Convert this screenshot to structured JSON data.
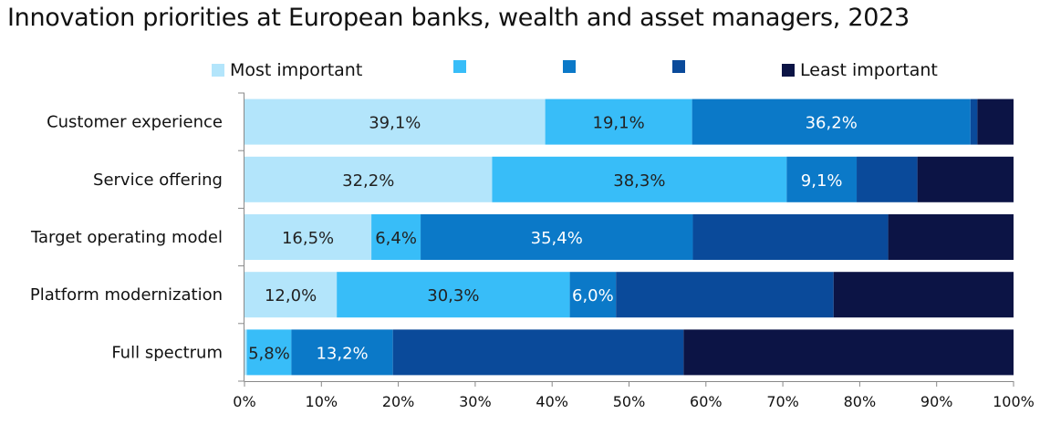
{
  "chart_data": {
    "type": "bar",
    "orientation": "horizontal",
    "stacked": true,
    "title": "Innovation priorities at European banks, wealth and asset managers, 2023",
    "categories": [
      "Customer experience",
      "Service offering",
      "Target operating model",
      "Platform modernization",
      "Full spectrum"
    ],
    "series": [
      {
        "name": "Most important",
        "color": "#b3e5fb",
        "values": [
          39.1,
          32.2,
          16.5,
          12.0,
          0.3
        ],
        "labels": [
          "39,1%",
          "32,2%",
          "16,5%",
          "12,0%",
          ""
        ]
      },
      {
        "name": "",
        "color": "#38bdf8",
        "values": [
          19.1,
          38.3,
          6.4,
          30.3,
          5.8
        ],
        "labels": [
          "19,1%",
          "38,3%",
          "6,4%",
          "30,3%",
          "5,8%"
        ]
      },
      {
        "name": "",
        "color": "#0b79c8",
        "values": [
          36.2,
          9.1,
          35.4,
          6.0,
          13.2
        ],
        "labels": [
          "36,2%",
          "9,1%",
          "35,4%",
          "6,0%",
          "13,2%"
        ]
      },
      {
        "name": "",
        "color": "#0a4a9a",
        "values": [
          0.9,
          7.9,
          25.4,
          28.3,
          37.8
        ],
        "labels": [
          "",
          "",
          "",
          "",
          ""
        ]
      },
      {
        "name": "Least important",
        "color": "#0c1445",
        "values": [
          4.7,
          12.5,
          16.3,
          23.4,
          42.9
        ],
        "labels": [
          "",
          "",
          "",
          "",
          ""
        ]
      }
    ],
    "label_colors": [
      "#222222",
      "#222222",
      "#ffffff",
      "#ffffff",
      "#ffffff"
    ],
    "xlim": [
      0,
      100
    ],
    "xticks": [
      "0%",
      "10%",
      "20%",
      "30%",
      "40%",
      "50%",
      "60%",
      "70%",
      "80%",
      "90%",
      "100%"
    ],
    "legend_position": "top",
    "grid": false
  }
}
